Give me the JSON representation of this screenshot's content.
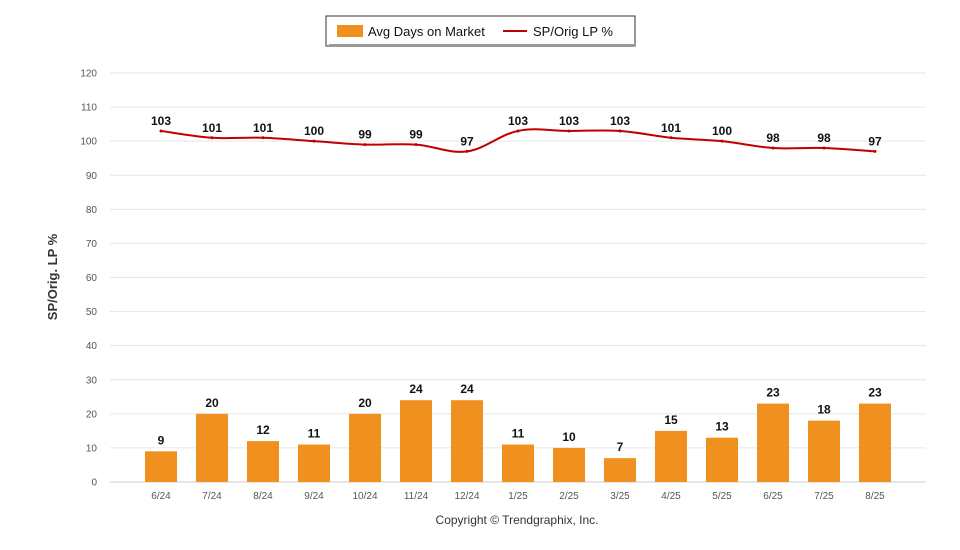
{
  "chart_data": {
    "type": "bar",
    "categories": [
      "6/24",
      "7/24",
      "8/24",
      "9/24",
      "10/24",
      "11/24",
      "12/24",
      "1/25",
      "2/25",
      "3/25",
      "4/25",
      "5/25",
      "6/25",
      "7/25",
      "8/25"
    ],
    "series": [
      {
        "name": "Avg Days on Market",
        "type": "bar",
        "color": "#f0901e",
        "values": [
          9,
          20,
          12,
          11,
          20,
          24,
          24,
          11,
          10,
          7,
          15,
          13,
          23,
          18,
          23
        ]
      },
      {
        "name": "SP/Orig LP %",
        "type": "line",
        "color": "#c00000",
        "values": [
          103,
          101,
          101,
          100,
          99,
          99,
          97,
          103,
          103,
          103,
          101,
          100,
          98,
          98,
          97
        ]
      }
    ],
    "ylabel": "SP/Orig. LP %",
    "ylim": [
      0,
      120
    ],
    "yticks": [
      0,
      10,
      20,
      30,
      40,
      50,
      60,
      70,
      80,
      90,
      100,
      110,
      120
    ],
    "grid": true,
    "legend_position": "top-center"
  },
  "footer": {
    "copyright": "Copyright © Trendgraphix, Inc."
  }
}
